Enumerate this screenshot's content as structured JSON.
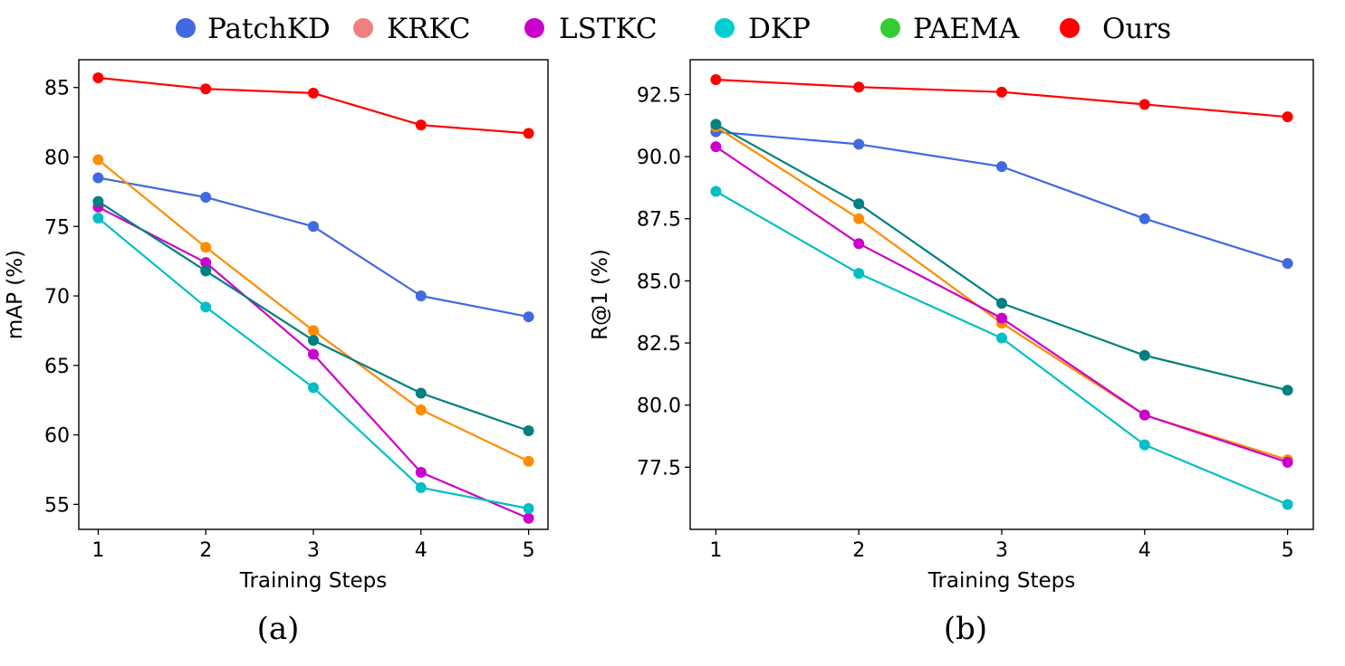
{
  "legend": [
    {
      "name": "PatchKD",
      "color": "#4169E1"
    },
    {
      "name": "KRKC",
      "color": "#F08080"
    },
    {
      "name": "LSTKC",
      "color": "#CC00CC"
    },
    {
      "name": "DKP",
      "color": "#00CED1"
    },
    {
      "name": "PAEMA",
      "color": "#32CD32"
    },
    {
      "name": "Ours",
      "color": "#FF0000"
    }
  ],
  "chart_data": [
    {
      "type": "line",
      "panel_label": "(a)",
      "xlabel": "Training Steps",
      "ylabel": "mAP (%)",
      "x": [
        1,
        2,
        3,
        4,
        5
      ],
      "xticks": [
        "1",
        "2",
        "3",
        "4",
        "5"
      ],
      "yticks": [
        55,
        60,
        65,
        70,
        75,
        80,
        85
      ],
      "ytick_labels": [
        "55",
        "60",
        "65",
        "70",
        "75",
        "80",
        "85"
      ],
      "xlim": [
        0.82,
        5.18
      ],
      "ylim": [
        53.2,
        87.0
      ],
      "series": [
        {
          "name": "PatchKD",
          "color": "#4169E1",
          "values": [
            78.5,
            77.1,
            75.0,
            70.0,
            68.5
          ]
        },
        {
          "name": "KRKC",
          "color": "#FF8C00",
          "values": [
            79.8,
            73.5,
            67.5,
            61.8,
            58.1
          ]
        },
        {
          "name": "LSTKC",
          "color": "#CC00CC",
          "values": [
            76.4,
            72.4,
            65.8,
            57.3,
            54.0
          ]
        },
        {
          "name": "DKP",
          "color": "#00BFC4",
          "values": [
            75.6,
            69.2,
            63.4,
            56.2,
            54.7
          ]
        },
        {
          "name": "PAEMA",
          "color": "#008080",
          "values": [
            76.8,
            71.8,
            66.8,
            63.0,
            60.3
          ]
        },
        {
          "name": "Ours",
          "color": "#FF0000",
          "values": [
            85.7,
            84.9,
            84.6,
            82.3,
            81.7
          ]
        }
      ]
    },
    {
      "type": "line",
      "panel_label": "(b)",
      "xlabel": "Training Steps",
      "ylabel": "R@1 (%)",
      "x": [
        1,
        2,
        3,
        4,
        5
      ],
      "xticks": [
        "1",
        "2",
        "3",
        "4",
        "5"
      ],
      "yticks": [
        77.5,
        80.0,
        82.5,
        85.0,
        87.5,
        90.0,
        92.5
      ],
      "ytick_labels": [
        "77.5",
        "80.0",
        "82.5",
        "85.0",
        "87.5",
        "90.0",
        "92.5"
      ],
      "xlim": [
        0.82,
        5.18
      ],
      "ylim": [
        75.0,
        93.9
      ],
      "series": [
        {
          "name": "PatchKD",
          "color": "#4169E1",
          "values": [
            91.0,
            90.5,
            89.6,
            87.5,
            85.7
          ]
        },
        {
          "name": "KRKC",
          "color": "#FF8C00",
          "values": [
            91.2,
            87.5,
            83.3,
            79.6,
            77.8
          ]
        },
        {
          "name": "LSTKC",
          "color": "#CC00CC",
          "values": [
            90.4,
            86.5,
            83.5,
            79.6,
            77.7
          ]
        },
        {
          "name": "DKP",
          "color": "#00BFC4",
          "values": [
            88.6,
            85.3,
            82.7,
            78.4,
            76.0
          ]
        },
        {
          "name": "PAEMA",
          "color": "#008080",
          "values": [
            91.3,
            88.1,
            84.1,
            82.0,
            80.6
          ]
        },
        {
          "name": "Ours",
          "color": "#FF0000",
          "values": [
            93.1,
            92.8,
            92.6,
            92.1,
            91.6
          ]
        }
      ]
    }
  ]
}
